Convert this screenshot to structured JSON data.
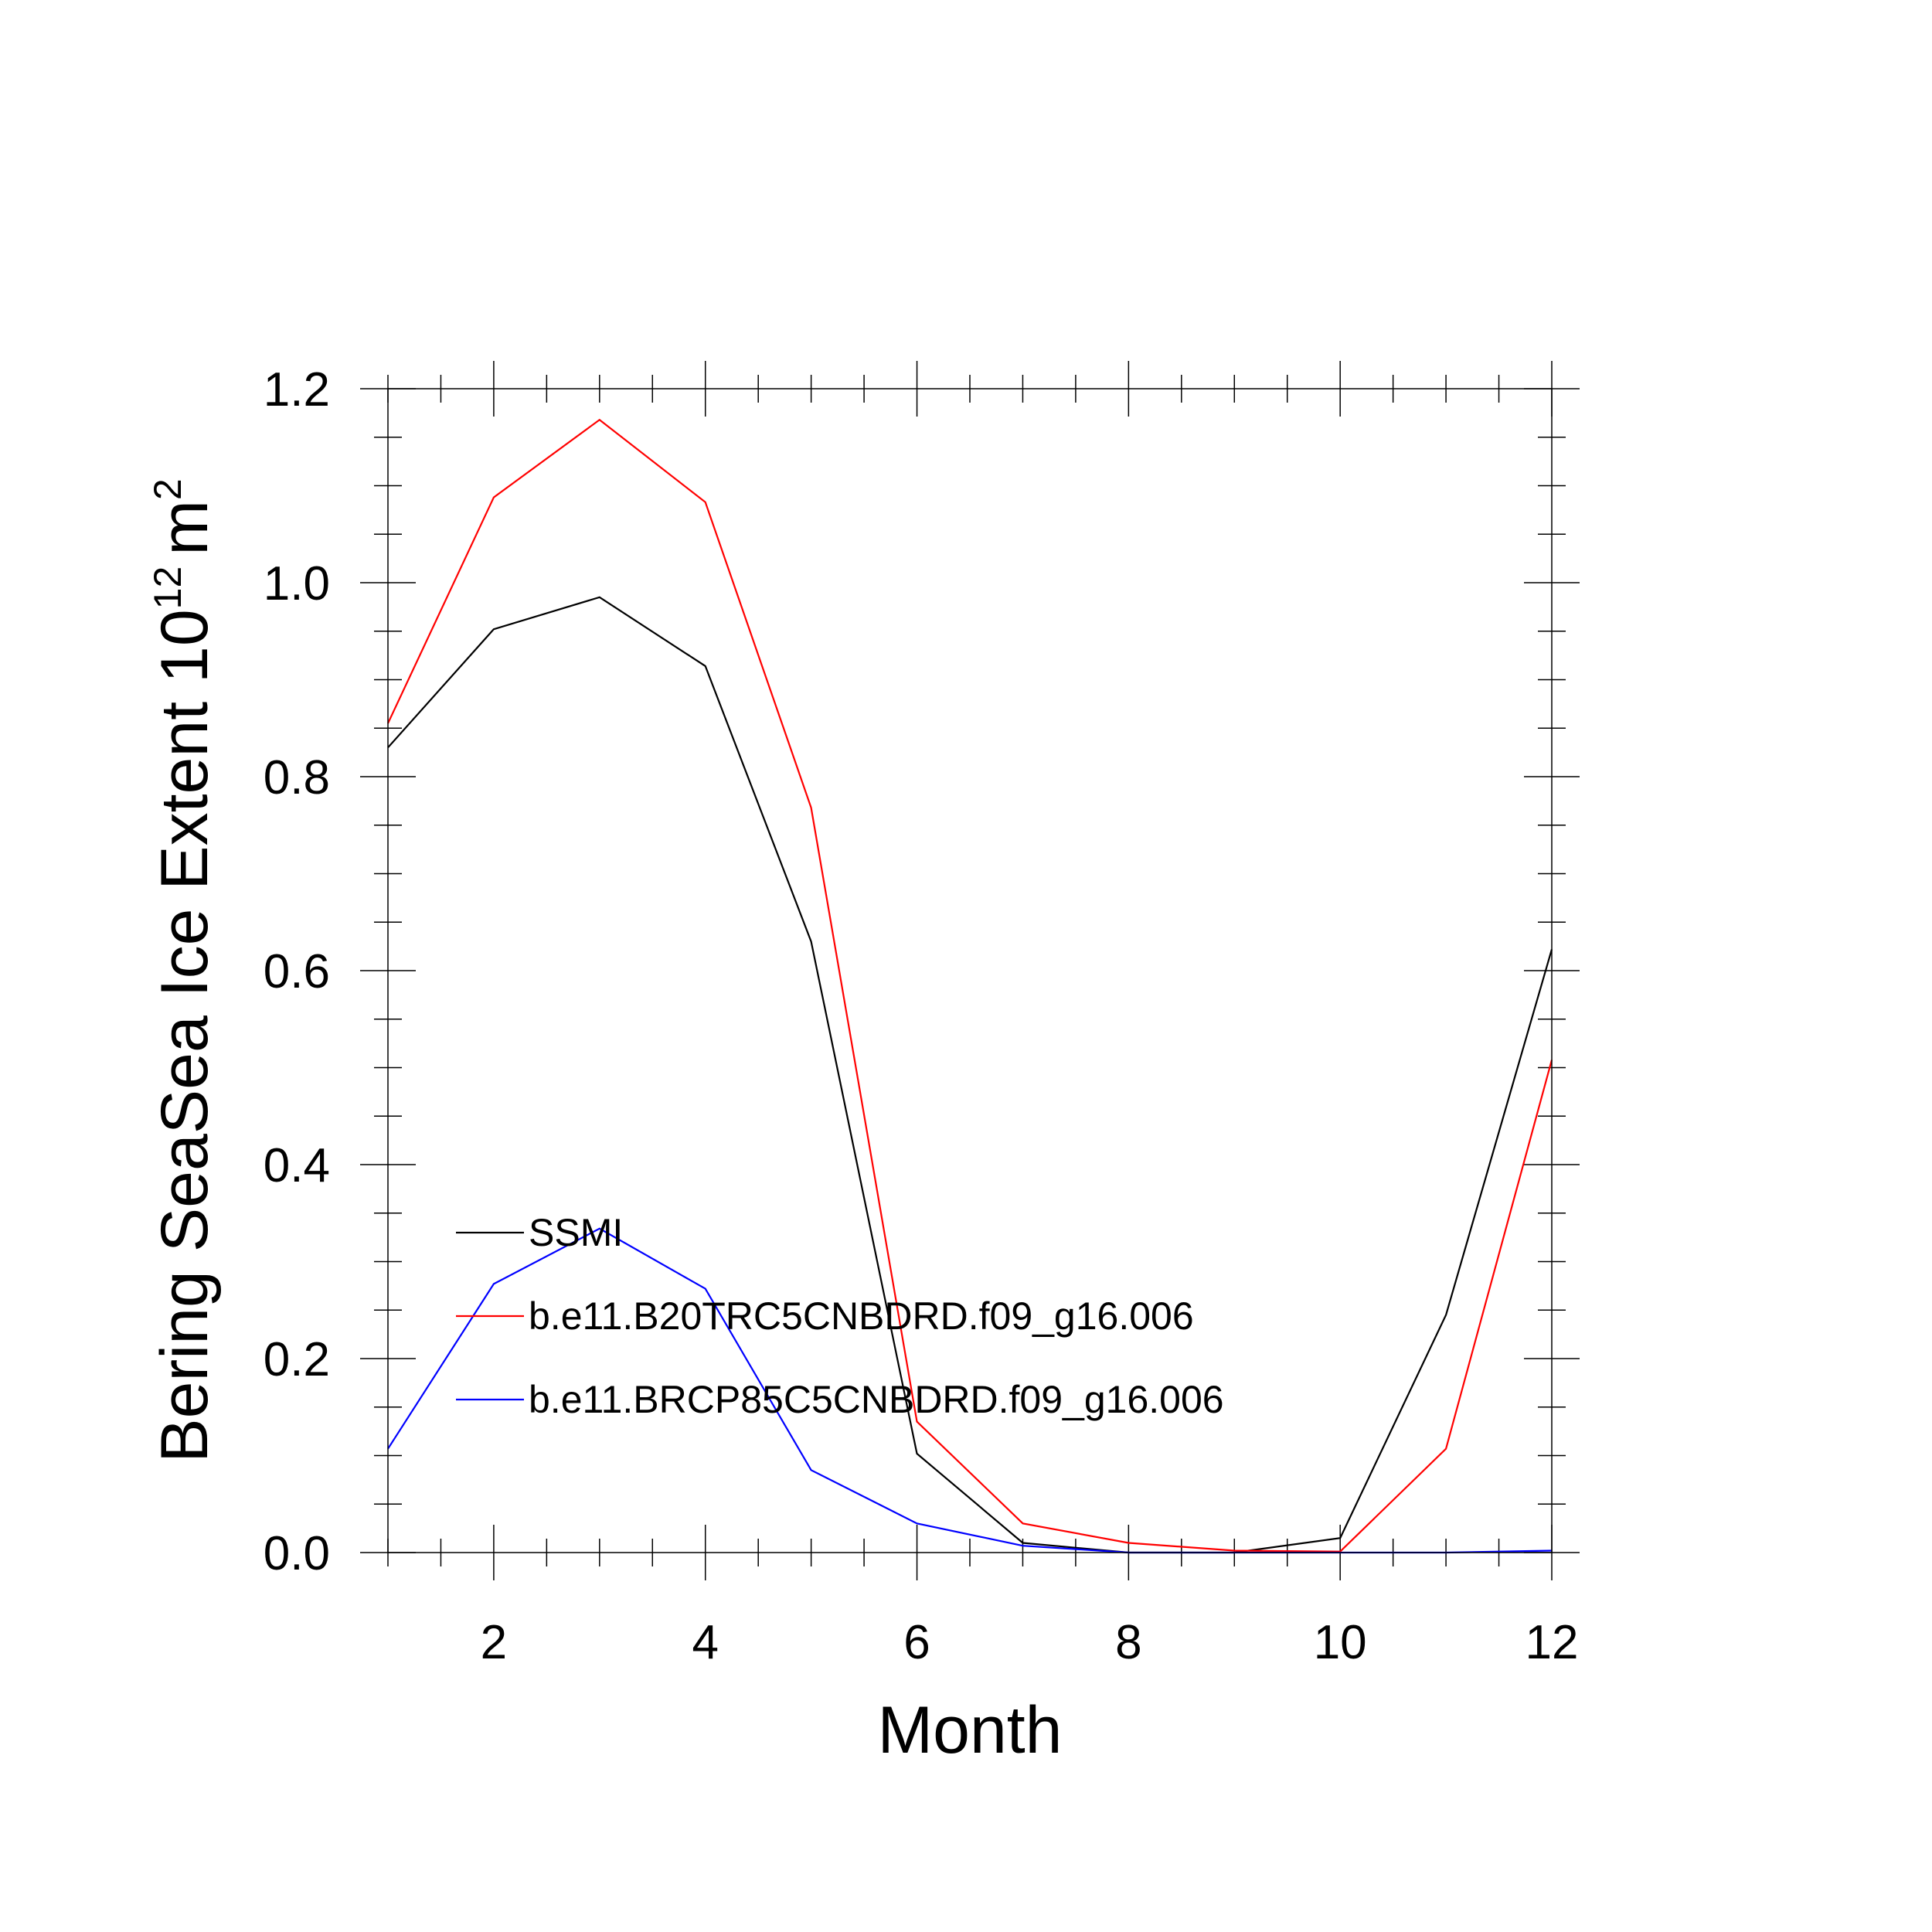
{
  "chart_data": {
    "type": "line",
    "xlabel": "Month",
    "ylabel": "Bering SeaSea Ice Extent 10",
    "ylabel_exponent": "12",
    "ylabel_unit": "m",
    "ylabel_unit_exponent": "2",
    "xlim": [
      1,
      12
    ],
    "ylim": [
      0,
      1.2
    ],
    "x_ticks": [
      2,
      4,
      6,
      8,
      10,
      12
    ],
    "x_tick_labels": [
      "2",
      "4",
      "6",
      "8",
      "10",
      "12"
    ],
    "y_ticks": [
      0,
      0.2,
      0.4,
      0.6,
      0.8,
      1.0,
      1.2
    ],
    "y_tick_labels": [
      "0.0",
      "0.2",
      "0.4",
      "0.6",
      "0.8",
      "1.0",
      "1.2"
    ],
    "grid": false,
    "legend_position": "lower-left",
    "x": [
      1,
      2,
      3,
      4,
      5,
      6,
      7,
      8,
      9,
      10,
      11,
      12
    ],
    "series": [
      {
        "name": "SSMI",
        "color": "#000000",
        "values": [
          0.83,
          0.952,
          0.985,
          0.914,
          0.63,
          0.102,
          0.01,
          0.0,
          0.0,
          0.015,
          0.245,
          0.622
        ]
      },
      {
        "name": "b.e11.B20TRC5CNBDRD.f09_g16.006",
        "color": "#ff0000",
        "values": [
          0.855,
          1.088,
          1.168,
          1.083,
          0.768,
          0.135,
          0.03,
          0.01,
          0.002,
          0.001,
          0.107,
          0.508
        ]
      },
      {
        "name": "b.e11.BRCP85C5CNBDRD.f09_g16.006",
        "color": "#0000ff",
        "values": [
          0.107,
          0.277,
          0.334,
          0.272,
          0.085,
          0.03,
          0.007,
          0.0,
          0.0,
          0.0,
          0.0,
          0.002
        ]
      }
    ]
  }
}
